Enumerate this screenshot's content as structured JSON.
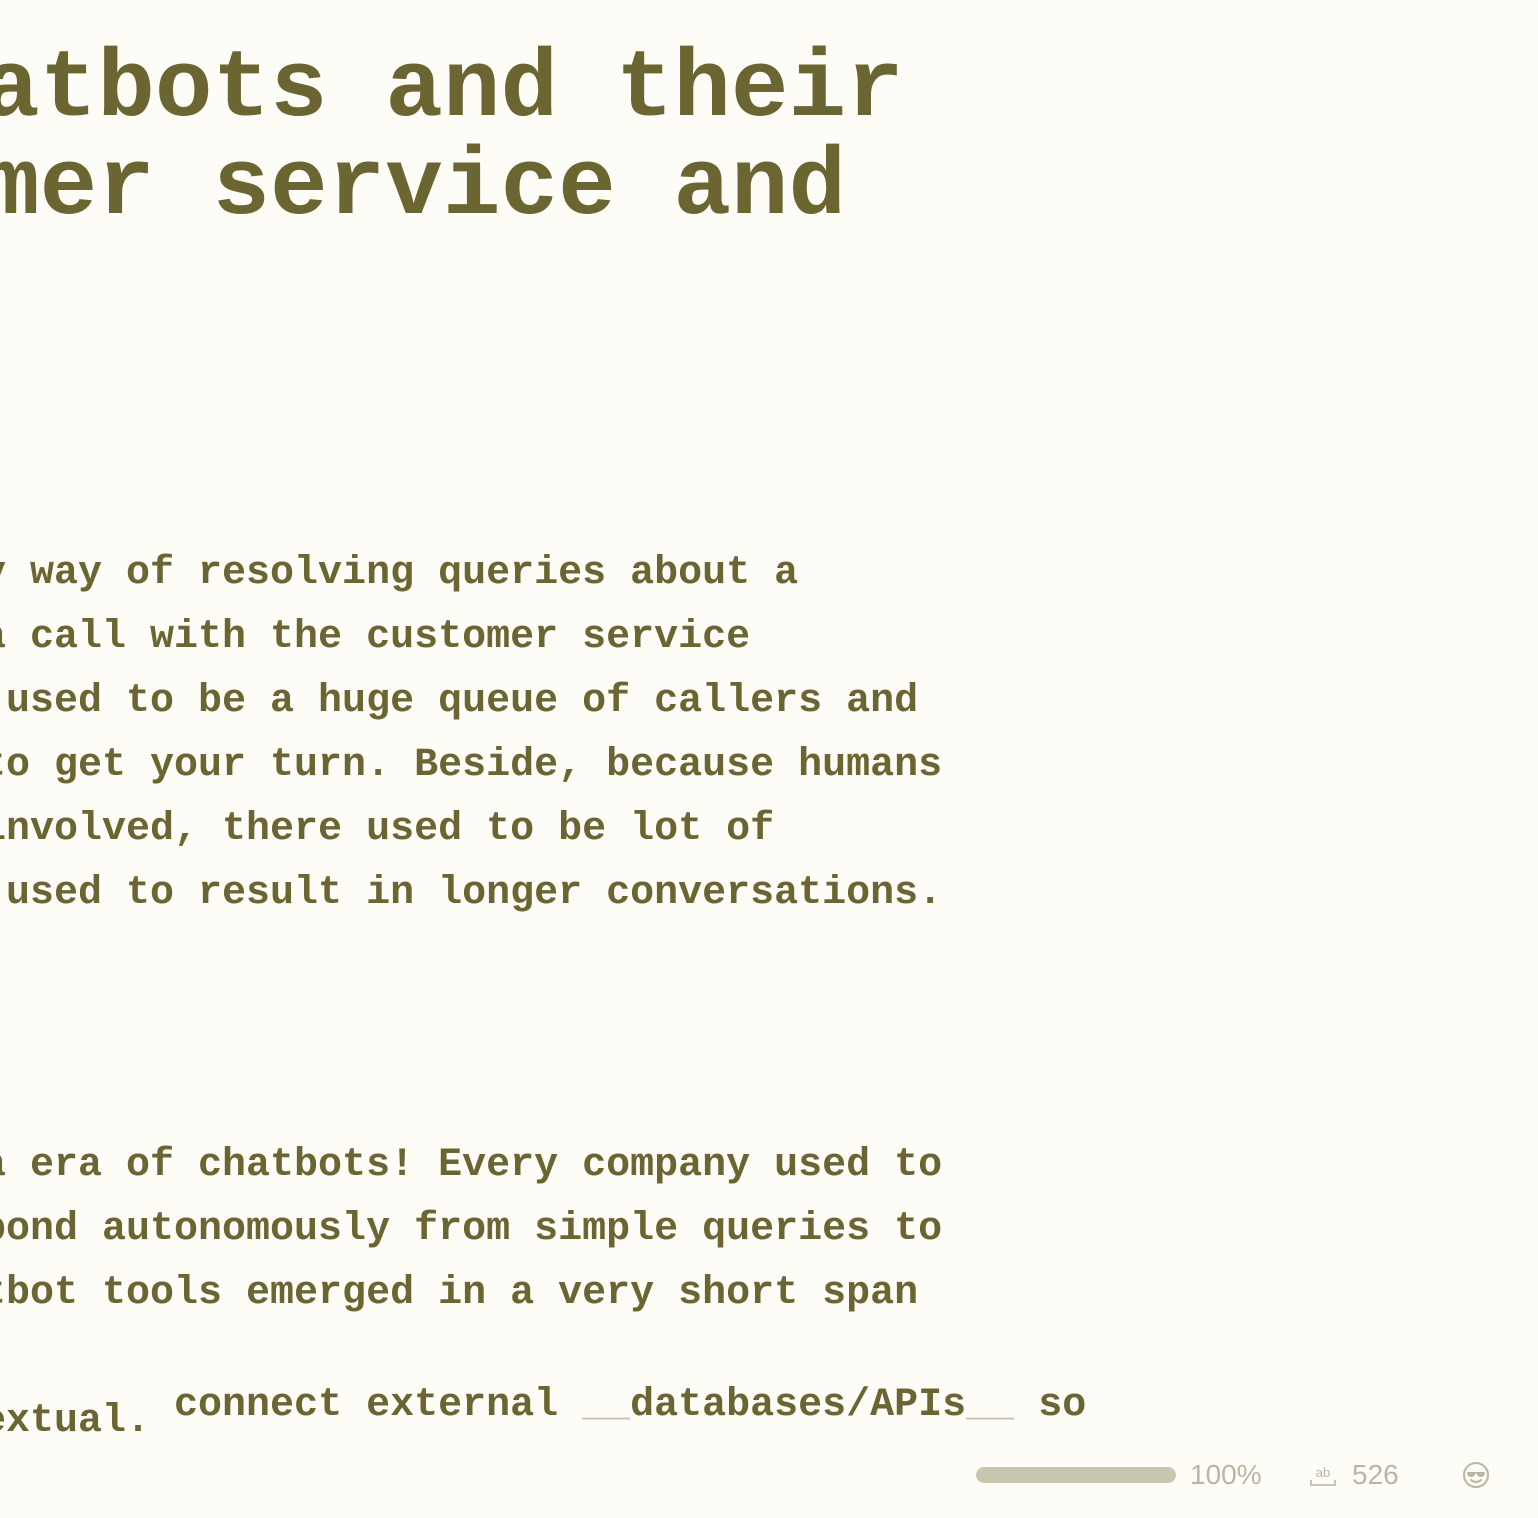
{
  "document": {
    "title_lines": [
      "atbots and their",
      "mer service and"
    ],
    "paragraph_1": [
      "y way of resolving queries about a",
      "a call with the customer service",
      " used to be a huge queue of callers and",
      "to get your turn. Beside, because humans",
      "involved, there used to be lot of",
      " used to result in longer conversations."
    ],
    "paragraph_2": {
      "line_1": "a era of chatbots! Every company used to",
      "line_2": "pond autonomously from simple queries to",
      "line_3": "tbot tools emerged in a very short span",
      "line_4_before": "  connect external ",
      "line_4_marker_open": "__",
      "line_4_bold": "databases/APIs",
      "line_4_marker_close": "__",
      "line_4_after": " so",
      "line_5": "extual."
    }
  },
  "statusbar": {
    "progress": 1.0,
    "progress_label": "100%",
    "word_count_icon": "word-count-icon",
    "word_count": "526",
    "mood_icon": "sunglasses-face-icon"
  },
  "colors": {
    "background": "#fdfcf7",
    "text": "#6b6532",
    "muted": "#b9b7a3",
    "marker": "#c9c6b0"
  }
}
